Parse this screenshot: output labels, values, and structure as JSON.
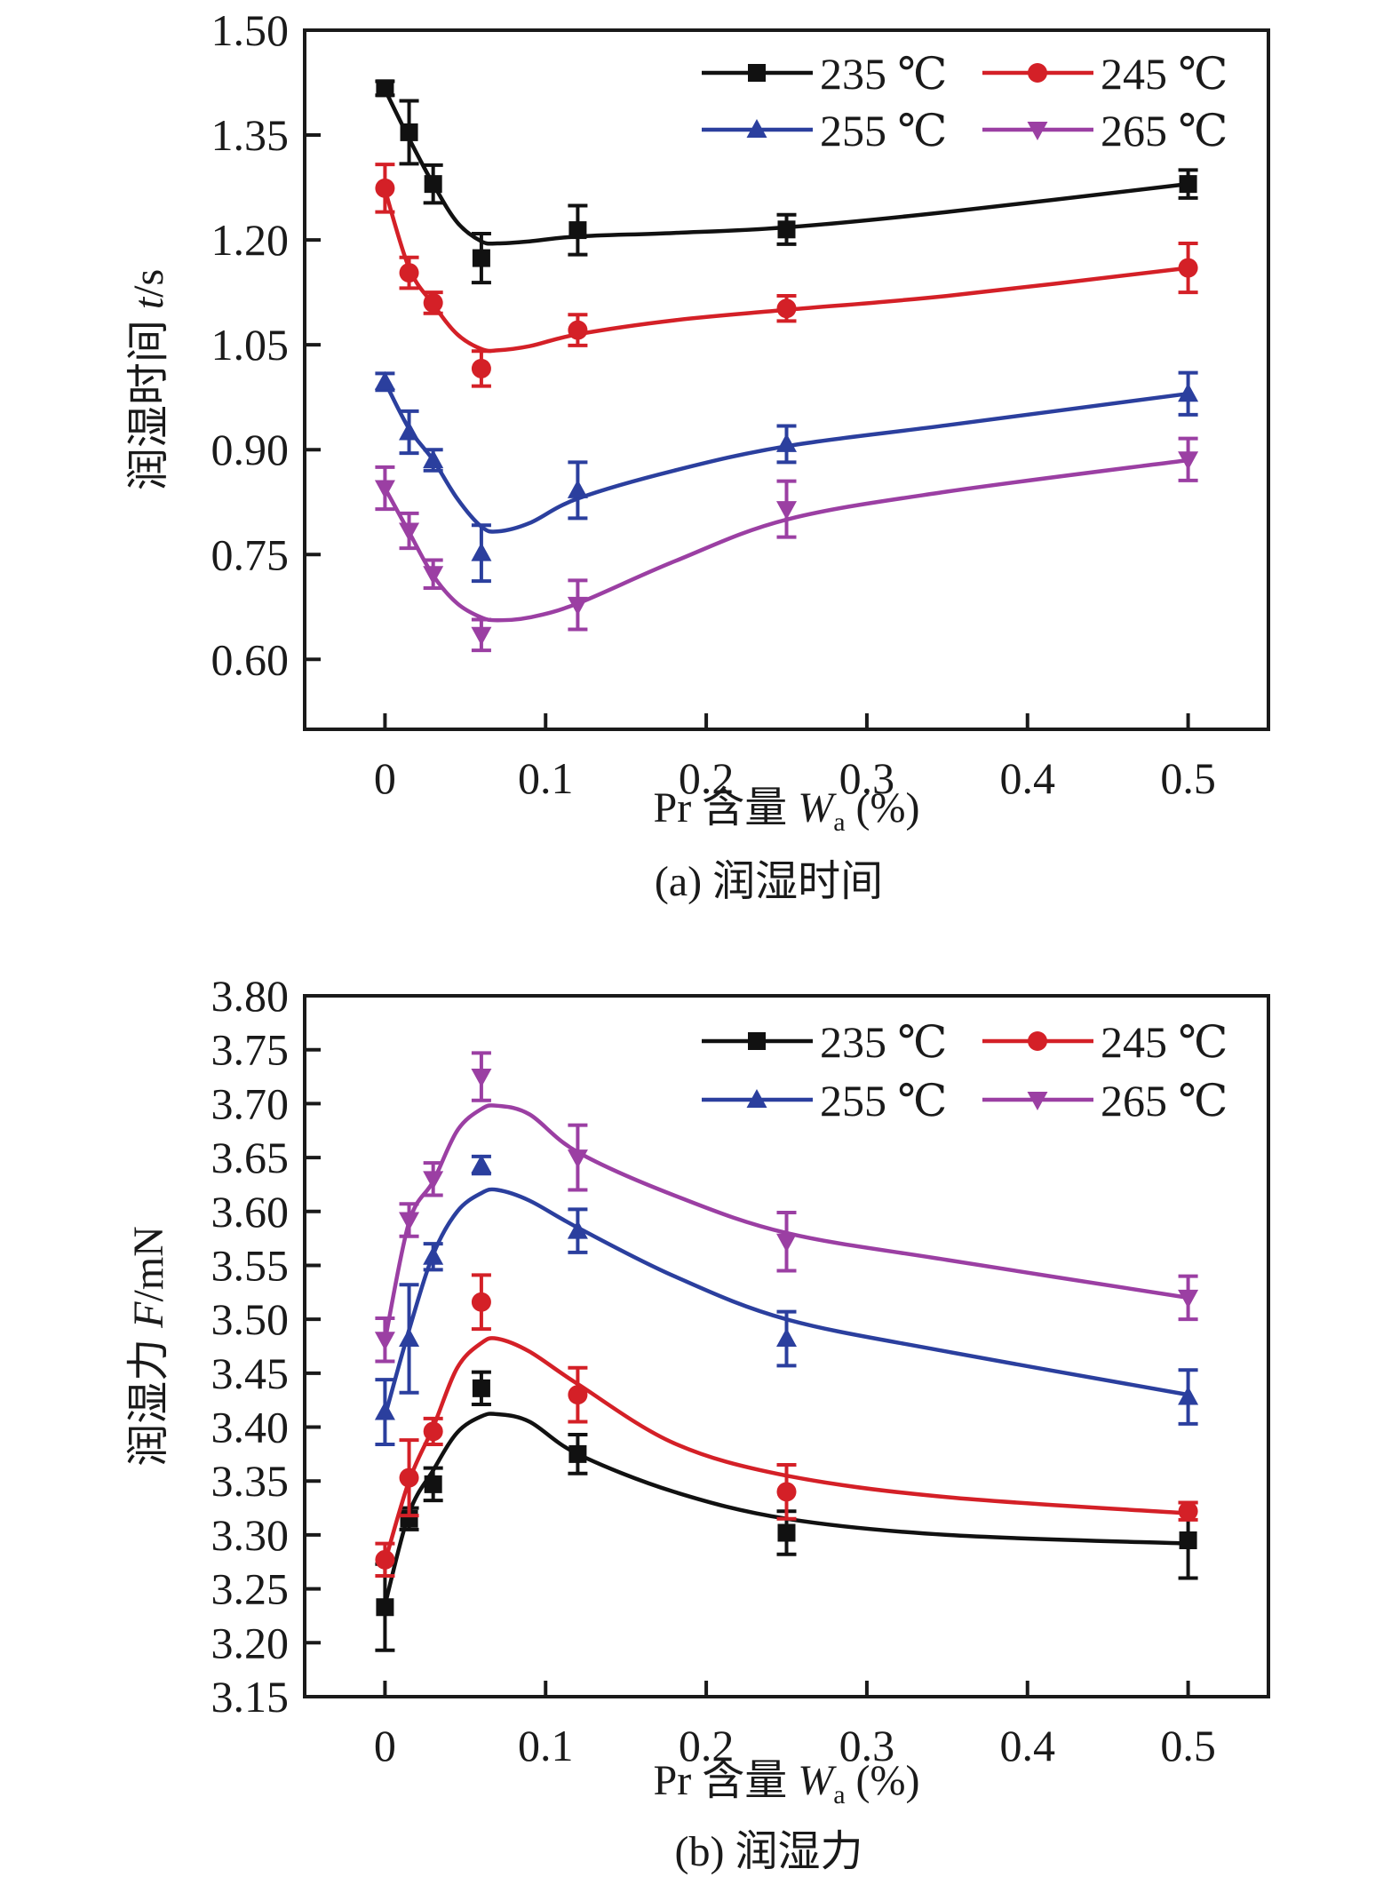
{
  "chart_data": [
    {
      "type": "line",
      "panel": "a",
      "caption": "(a) 润湿时间",
      "xlabel": {
        "prefix": "Pr 含量 ",
        "var": "W",
        "sub": "a",
        "suffix": " (%)"
      },
      "ylabel": {
        "prefix": "润湿时间 ",
        "var": "t",
        "suffix": "/s"
      },
      "xlim": [
        -0.05,
        0.55
      ],
      "ylim": [
        0.5,
        1.5
      ],
      "xticks": [
        0,
        0.1,
        0.2,
        0.3,
        0.4,
        0.5
      ],
      "xtick_labels": [
        "0",
        "0.1",
        "0.2",
        "0.3",
        "0.4",
        "0.5"
      ],
      "yticks": [
        0.6,
        0.75,
        0.9,
        1.05,
        1.2,
        1.35,
        1.5
      ],
      "ytick_labels": [
        "0.60",
        "0.75",
        "0.90",
        "1.05",
        "1.20",
        "1.35",
        "1.50"
      ],
      "grid": false,
      "legend_position": "top-right",
      "x": [
        0,
        0.015,
        0.03,
        0.06,
        0.12,
        0.25,
        0.5
      ],
      "fit_x": [
        0,
        0.015,
        0.03,
        0.045,
        0.06,
        0.07,
        0.09,
        0.12,
        0.18,
        0.25,
        0.35,
        0.5
      ],
      "series": [
        {
          "name": "235 ℃",
          "color": "#111111",
          "marker": "square",
          "values": [
            1.417,
            1.354,
            1.28,
            1.174,
            1.214,
            1.215,
            1.28
          ],
          "errors": [
            0.01,
            0.045,
            0.027,
            0.035,
            0.035,
            0.021,
            0.02
          ],
          "fit": [
            1.415,
            1.345,
            1.28,
            1.225,
            1.198,
            1.195,
            1.198,
            1.205,
            1.21,
            1.218,
            1.24,
            1.28
          ]
        },
        {
          "name": "245 ℃",
          "color": "#d42027",
          "marker": "circle",
          "values": [
            1.274,
            1.153,
            1.11,
            1.016,
            1.071,
            1.102,
            1.16
          ],
          "errors": [
            0.034,
            0.022,
            0.015,
            0.025,
            0.022,
            0.018,
            0.035
          ],
          "fit": [
            1.272,
            1.16,
            1.108,
            1.065,
            1.044,
            1.042,
            1.048,
            1.065,
            1.085,
            1.1,
            1.12,
            1.16
          ]
        },
        {
          "name": "255 ℃",
          "color": "#2b3f9e",
          "marker": "triangle-up",
          "values": [
            0.997,
            0.925,
            0.885,
            0.752,
            0.842,
            0.908,
            0.98
          ],
          "errors": [
            0.012,
            0.03,
            0.015,
            0.04,
            0.04,
            0.026,
            0.03
          ],
          "fit": [
            0.997,
            0.93,
            0.885,
            0.83,
            0.79,
            0.783,
            0.795,
            0.83,
            0.87,
            0.905,
            0.935,
            0.98
          ]
        },
        {
          "name": "265 ℃",
          "color": "#9b3fa3",
          "marker": "triangle-down",
          "values": [
            0.845,
            0.784,
            0.722,
            0.635,
            0.678,
            0.815,
            0.886
          ],
          "errors": [
            0.03,
            0.025,
            0.02,
            0.022,
            0.035,
            0.04,
            0.03
          ],
          "fit": [
            0.845,
            0.782,
            0.72,
            0.68,
            0.66,
            0.656,
            0.66,
            0.68,
            0.74,
            0.8,
            0.84,
            0.885
          ]
        }
      ]
    },
    {
      "type": "line",
      "panel": "b",
      "caption": "(b) 润湿力",
      "xlabel": {
        "prefix": "Pr 含量 ",
        "var": "W",
        "sub": "a",
        "suffix": " (%)"
      },
      "ylabel": {
        "prefix": "润湿力 ",
        "var": "F",
        "suffix": "/mN"
      },
      "xlim": [
        -0.05,
        0.55
      ],
      "ylim": [
        3.15,
        3.8
      ],
      "xticks": [
        0,
        0.1,
        0.2,
        0.3,
        0.4,
        0.5
      ],
      "xtick_labels": [
        "0",
        "0.1",
        "0.2",
        "0.3",
        "0.4",
        "0.5"
      ],
      "yticks": [
        3.15,
        3.2,
        3.25,
        3.3,
        3.35,
        3.4,
        3.45,
        3.5,
        3.55,
        3.6,
        3.65,
        3.7,
        3.75,
        3.8
      ],
      "ytick_labels": [
        "3.15",
        "3.20",
        "3.25",
        "3.30",
        "3.35",
        "3.40",
        "3.45",
        "3.50",
        "3.55",
        "3.60",
        "3.65",
        "3.70",
        "3.75",
        "3.80"
      ],
      "grid": false,
      "legend_position": "top-right",
      "x": [
        0,
        0.015,
        0.03,
        0.06,
        0.12,
        0.25,
        0.5
      ],
      "fit_x": [
        0,
        0.015,
        0.03,
        0.045,
        0.06,
        0.07,
        0.09,
        0.12,
        0.18,
        0.25,
        0.35,
        0.5
      ],
      "series": [
        {
          "name": "235 ℃",
          "color": "#111111",
          "marker": "square",
          "values": [
            3.233,
            3.315,
            3.347,
            3.436,
            3.375,
            3.302,
            3.295
          ],
          "errors": [
            0.04,
            0.01,
            0.015,
            0.015,
            0.018,
            0.02,
            0.035
          ],
          "fit": [
            3.235,
            3.32,
            3.36,
            3.395,
            3.41,
            3.412,
            3.405,
            3.375,
            3.34,
            3.315,
            3.3,
            3.292
          ]
        },
        {
          "name": "245 ℃",
          "color": "#d42027",
          "marker": "circle",
          "values": [
            3.277,
            3.353,
            3.396,
            3.516,
            3.43,
            3.34,
            3.322
          ],
          "errors": [
            0.015,
            0.035,
            0.012,
            0.025,
            0.025,
            0.025,
            0.008
          ],
          "fit": [
            3.275,
            3.35,
            3.4,
            3.455,
            3.478,
            3.482,
            3.47,
            3.44,
            3.385,
            3.355,
            3.335,
            3.32
          ]
        },
        {
          "name": "255 ℃",
          "color": "#2b3f9e",
          "marker": "triangle-up",
          "values": [
            3.414,
            3.482,
            3.558,
            3.643,
            3.582,
            3.482,
            3.428
          ],
          "errors": [
            0.03,
            0.05,
            0.012,
            0.008,
            0.02,
            0.025,
            0.025
          ],
          "fit": [
            3.41,
            3.49,
            3.56,
            3.6,
            3.617,
            3.62,
            3.61,
            3.585,
            3.54,
            3.5,
            3.47,
            3.43
          ]
        },
        {
          "name": "265 ℃",
          "color": "#9b3fa3",
          "marker": "triangle-down",
          "values": [
            3.481,
            3.592,
            3.63,
            3.725,
            3.65,
            3.572,
            3.52
          ],
          "errors": [
            0.02,
            0.015,
            0.015,
            0.022,
            0.03,
            0.027,
            0.02
          ],
          "fit": [
            3.48,
            3.59,
            3.628,
            3.675,
            3.695,
            3.698,
            3.69,
            3.655,
            3.615,
            3.58,
            3.555,
            3.52
          ]
        }
      ]
    }
  ]
}
